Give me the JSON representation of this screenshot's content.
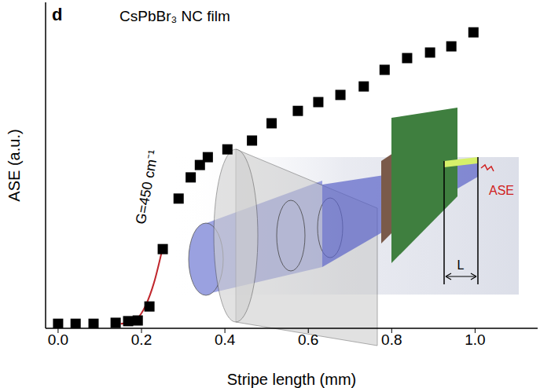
{
  "chart_data": {
    "type": "scatter",
    "title": "CsPbBr₃ NC film",
    "panel": "d",
    "x_label": "Stripe length (mm)",
    "y_label": "ASE (a.u.)",
    "xlim": [
      -0.03,
      1.15
    ],
    "xticks": [
      {
        "value": 0,
        "label": "0.0"
      },
      0.2,
      0.4,
      0.6,
      0.8,
      {
        "value": 1,
        "label": "1.0"
      }
    ],
    "ylim": [
      0,
      100
    ],
    "tick_labels": "x",
    "annotation": "G=450 cm⁻¹",
    "inset_labels": {
      "output": "ASE",
      "length": "L"
    },
    "series": [
      {
        "type": "scatter",
        "color": "#000000",
        "marker": "square",
        "x": [
          0.0,
          0.042,
          0.085,
          0.138,
          0.168,
          0.191,
          0.219,
          0.251,
          0.289,
          0.318,
          0.34,
          0.359,
          0.406,
          0.465,
          0.512,
          0.575,
          0.624,
          0.677,
          0.733,
          0.783,
          0.837,
          0.892,
          0.943,
          0.996
        ],
        "values": [
          1.4,
          1.4,
          1.4,
          1.7,
          2.2,
          2.4,
          6.7,
          24.3,
          39.8,
          46.3,
          50.1,
          52.5,
          54.9,
          57.6,
          62.9,
          66.7,
          69.4,
          71.6,
          74.2,
          79.3,
          82.9,
          84.6,
          86.5,
          90.8
        ]
      },
      {
        "type": "line",
        "color": "#c0272d",
        "line_style": "solid",
        "x": [
          0.15,
          0.17,
          0.19,
          0.21,
          0.23,
          0.25
        ],
        "values": [
          1.4,
          1.8,
          3,
          7,
          14,
          24.3
        ]
      }
    ]
  }
}
